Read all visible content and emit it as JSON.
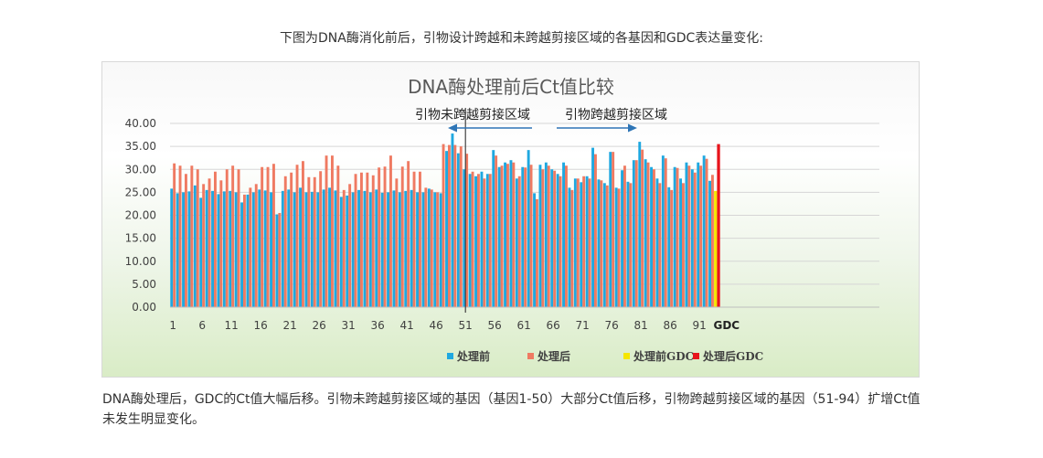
{
  "intro_text": "下图为DNA酶消化前后，引物设计跨越和未跨越剪接区域的各基因和GDC表达量变化:",
  "caption_text": "DNA酶处理后，GDC的Ct值大幅后移。引物未跨越剪接区域的基因（基因1-50）大部分Ct值后移，引物跨越剪接区域的基因（51-94）扩增Ct值未发生明显变化。",
  "chart_data": {
    "type": "bar",
    "title": "DNA酶处理前后Ct值比较",
    "xlabel": "",
    "ylabel": "",
    "ylim": [
      0,
      40
    ],
    "yticks": [
      "0.00",
      "5.00",
      "10.00",
      "15.00",
      "20.00",
      "25.00",
      "30.00",
      "35.00",
      "40.00"
    ],
    "xtick_labels": [
      "1",
      "6",
      "11",
      "16",
      "21",
      "26",
      "31",
      "36",
      "41",
      "46",
      "51",
      "56",
      "61",
      "66",
      "71",
      "76",
      "81",
      "86",
      "91",
      "GDC"
    ],
    "xtick_positions": [
      1,
      6,
      11,
      16,
      21,
      26,
      31,
      36,
      41,
      46,
      51,
      56,
      61,
      66,
      71,
      76,
      81,
      86,
      91,
      95
    ],
    "grid": true,
    "legend_position": "bottom",
    "annotations": {
      "left_region": "引物未跨越剪接区域",
      "right_region": "引物跨越剪接区域",
      "divider_at": 50.5
    },
    "series": [
      {
        "name": "处理前",
        "color": "#1fa8e0",
        "values": [
          25.8,
          24.8,
          25.0,
          25.2,
          26.5,
          23.8,
          25.5,
          25.3,
          24.6,
          25.2,
          25.3,
          25.0,
          22.8,
          24.5,
          25.0,
          25.6,
          25.4,
          25.0,
          20.2,
          25.3,
          25.6,
          25.0,
          26.0,
          25.0,
          25.1,
          25.0,
          25.6,
          26.0,
          25.4,
          24.0,
          24.3,
          25.0,
          25.5,
          25.3,
          25.0,
          25.6,
          24.9,
          25.0,
          25.4,
          25.0,
          25.3,
          25.5,
          25.0,
          25.0,
          25.8,
          25.0,
          24.8,
          34.0,
          37.8,
          33.5,
          30.0,
          29.0,
          28.5,
          29.5,
          29.0,
          34.2,
          30.5,
          31.5,
          32.0,
          28.0,
          30.5,
          34.2,
          24.8,
          31.0,
          31.5,
          30.0,
          29.0,
          31.5,
          26.0,
          28.0,
          27.2,
          28.5,
          34.7,
          27.8,
          27.0,
          33.8,
          26.0,
          29.8,
          27.3,
          32.0,
          36.0,
          32.2,
          30.5,
          28.0,
          33.0,
          26.1,
          30.5,
          28.0,
          31.5,
          30.0,
          31.5,
          33.0,
          27.5
        ],
        "gdc": 25.3
      },
      {
        "name": "处理后",
        "color": "#ef7a62",
        "values": [
          31.3,
          30.8,
          29.0,
          30.8,
          30.0,
          26.8,
          28.0,
          29.5,
          27.6,
          30.0,
          30.8,
          30.0,
          24.5,
          26.0,
          26.8,
          30.5,
          30.5,
          31.2,
          20.5,
          28.5,
          29.3,
          31.0,
          31.8,
          28.3,
          28.3,
          29.6,
          33.0,
          33.0,
          30.8,
          25.5,
          26.8,
          29.0,
          29.3,
          29.3,
          28.7,
          30.4,
          30.6,
          33.0,
          28.0,
          30.6,
          31.8,
          29.5,
          29.5,
          26.0,
          25.6,
          25.0,
          35.5,
          35.3,
          35.3,
          35.0,
          33.4,
          29.5,
          29.0,
          28.0,
          29.0,
          33.0,
          30.8,
          31.2,
          31.5,
          28.5,
          30.4,
          31.0,
          23.5,
          30.0,
          30.8,
          29.7,
          28.5,
          30.8,
          25.5,
          28.0,
          28.5,
          28.0,
          33.3,
          27.6,
          26.5,
          33.8,
          25.8,
          30.8,
          27.0,
          32.0,
          34.3,
          31.5,
          30.0,
          27.0,
          32.4,
          25.5,
          30.3,
          27.0,
          30.8,
          29.3,
          30.8,
          32.3,
          28.8
        ],
        "gdc": 35.5
      },
      {
        "name": "处理前GDC",
        "color": "#f5e600"
      },
      {
        "name": "处理后GDC",
        "color": "#e8141c"
      }
    ]
  }
}
